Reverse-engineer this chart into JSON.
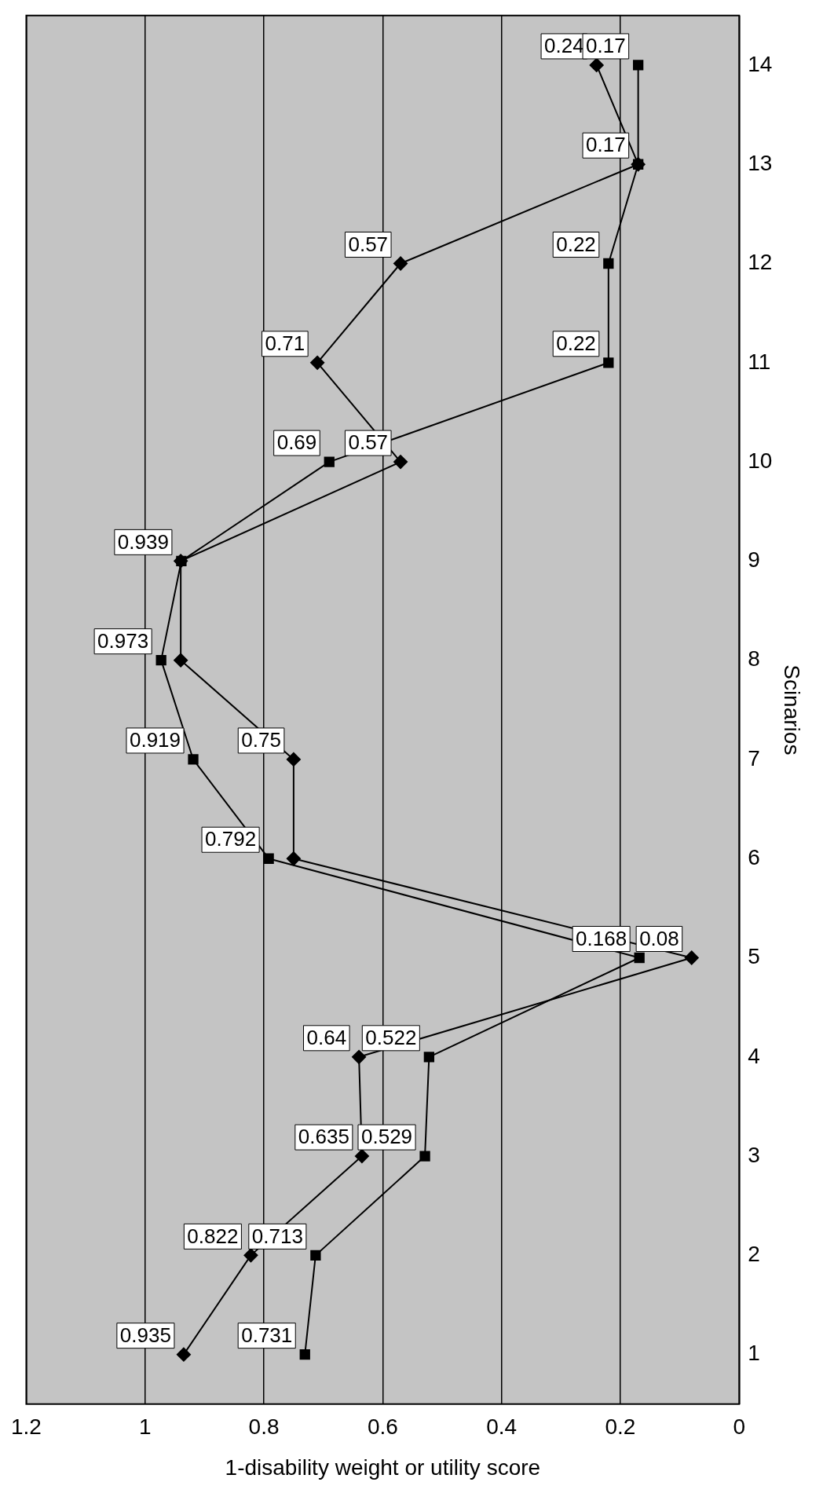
{
  "chart_data": {
    "type": "line",
    "orientation": "horizontal",
    "xlabel": "1-disability weight or utility score",
    "ylabel": "Scinarios",
    "categories": [
      "14",
      "13",
      "12",
      "11",
      "10",
      "9",
      "8",
      "7",
      "6",
      "5",
      "4",
      "3",
      "2",
      "1"
    ],
    "series": [
      {
        "color": "#000000",
        "marker": "diamond",
        "values": [
          0.24,
          0.17,
          0.57,
          0.71,
          0.57,
          0.94,
          0.94,
          0.75,
          0.75,
          0.08,
          0.64,
          0.635,
          0.822,
          0.935
        ],
        "value_labels": [
          "0.24",
          null,
          "0.57",
          "0.71",
          "0.57",
          null,
          null,
          "0.75",
          null,
          "0.08",
          "0.64",
          "0.635",
          "0.822",
          "0.935"
        ]
      },
      {
        "color": "#000000",
        "marker": "square",
        "values": [
          0.17,
          0.17,
          0.22,
          0.22,
          0.69,
          0.939,
          0.973,
          0.919,
          0.792,
          0.168,
          0.522,
          0.529,
          0.713,
          0.731
        ],
        "value_labels": [
          "0.17",
          "0.17",
          "0.22",
          "0.22",
          "0.69",
          "0.939",
          "0.973",
          "0.919",
          "0.792",
          "0.168",
          "0.522",
          "0.529",
          "0.713",
          "0.731"
        ]
      }
    ],
    "xlim": [
      1.2,
      0
    ],
    "xticks": [
      1.2,
      1,
      0.8,
      0.6,
      0.4,
      0.2,
      0
    ],
    "grid": "x",
    "line_style": "solid"
  }
}
